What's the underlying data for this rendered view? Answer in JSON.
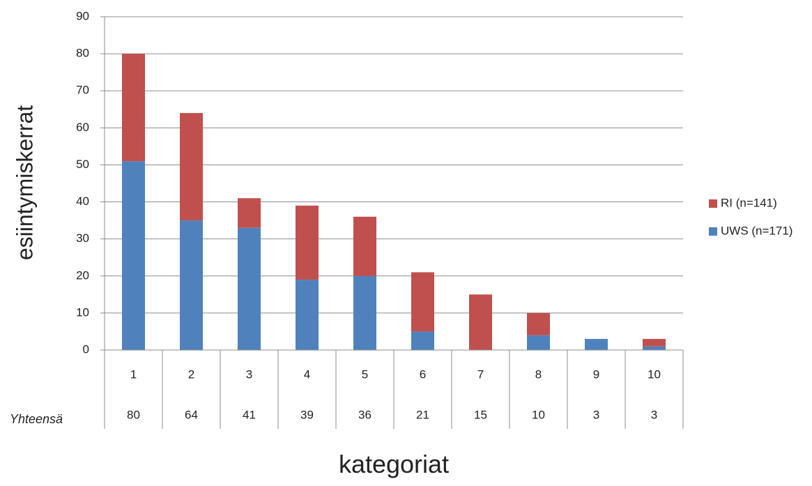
{
  "chart_data": {
    "type": "bar",
    "stacked": true,
    "categories": [
      "1",
      "2",
      "3",
      "4",
      "5",
      "6",
      "7",
      "8",
      "9",
      "10"
    ],
    "series": [
      {
        "name": "UWS (n=171)",
        "color": "#4F81BD",
        "values": [
          51,
          35,
          33,
          19,
          20,
          5,
          0,
          4,
          3,
          1
        ]
      },
      {
        "name": "RI (n=141)",
        "color": "#C0504D",
        "values": [
          29,
          29,
          8,
          20,
          16,
          16,
          15,
          6,
          0,
          2
        ]
      }
    ],
    "totals_label": "Yhteensä",
    "totals": [
      "80",
      "64",
      "41",
      "39",
      "36",
      "21",
      "15",
      "10",
      "3",
      "3"
    ],
    "xlabel": "kategoriat",
    "ylabel": "esiintymiskerrat",
    "ylim": [
      0,
      90
    ],
    "yticks": [
      0,
      10,
      20,
      30,
      40,
      50,
      60,
      70,
      80,
      90
    ],
    "grid": true,
    "legend_position": "right",
    "legend_order": [
      "RI (n=141)",
      "UWS (n=171)"
    ]
  }
}
